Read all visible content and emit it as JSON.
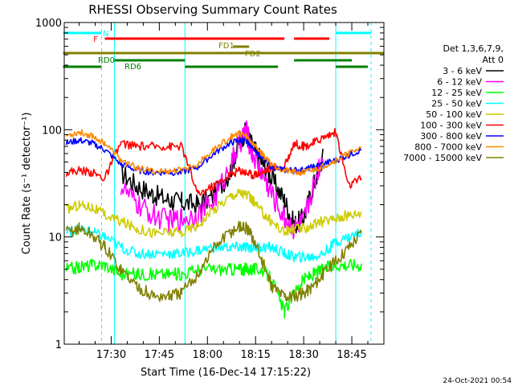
{
  "chart_data": {
    "type": "line",
    "title": "RHESSI Observing Summary Count Rates",
    "xlabel": "Start Time (16-Dec-14 17:15:22)",
    "ylabel": "Count Rate (s⁻¹ detector⁻¹)",
    "yscale": "log",
    "ylim": [
      1,
      1000
    ],
    "xlim": [
      "17:15:22",
      "18:55:00"
    ],
    "x_ticks": [
      "17:30",
      "17:45",
      "18:00",
      "18:15",
      "18:30",
      "18:45"
    ],
    "y_ticks": [
      "1",
      "10",
      "100",
      "1000"
    ],
    "legend_position": "right",
    "legend_header": [
      "Det 1,3,6,7,9,",
      "Att 0"
    ],
    "footer_date": "24-Oct-2021 00:54",
    "flags": [
      {
        "label": "N",
        "color": "#00ffff",
        "segments": [
          [
            "17:15",
            "17:27"
          ],
          [
            "18:40",
            "18:51"
          ]
        ]
      },
      {
        "label": "F",
        "color": "#ff0000",
        "segments": [
          [
            "17:28",
            "18:24"
          ],
          [
            "18:27",
            "18:38"
          ]
        ]
      },
      {
        "label": "FD1",
        "color": "#808000",
        "segments": [
          [
            "18:08",
            "18:13"
          ]
        ]
      },
      {
        "label": "FD2",
        "color": "#808000",
        "segments": [
          [
            "17:15",
            "18:55"
          ]
        ]
      },
      {
        "label": "RD0",
        "color": "#008000",
        "segments": [
          [
            "17:31",
            "17:53"
          ],
          [
            "18:27",
            "18:45"
          ]
        ]
      },
      {
        "label": "RD6",
        "color": "#008000",
        "segments": [
          [
            "17:15",
            "17:27"
          ],
          [
            "17:53",
            "18:22"
          ],
          [
            "18:40",
            "18:50"
          ]
        ]
      }
    ],
    "vlines": [
      {
        "time": "17:27",
        "style": "dashed"
      },
      {
        "time": "17:31",
        "style": "solid"
      },
      {
        "time": "17:53",
        "style": "solid"
      },
      {
        "time": "18:40",
        "style": "solid"
      },
      {
        "time": "18:51",
        "style": "dashed"
      }
    ],
    "series": [
      {
        "name": "3 - 6 keV",
        "color": "#000000",
        "x": [
          "17:16",
          "17:20",
          "17:24",
          "17:28",
          "17:33",
          "17:38",
          "17:43",
          "17:48",
          "17:52",
          "17:57",
          "18:02",
          "18:07",
          "18:10",
          "18:12",
          "18:14",
          "18:17",
          "18:20",
          "18:24",
          "18:27",
          "18:30",
          "18:33",
          "18:36",
          "18:40",
          "18:44",
          "18:48"
        ],
        "y": [
          null,
          null,
          null,
          null,
          40,
          30,
          25,
          22,
          21,
          20,
          24,
          40,
          80,
          95,
          70,
          50,
          35,
          22,
          13,
          15,
          30,
          55,
          null,
          null,
          null
        ]
      },
      {
        "name": "6 - 12 keV",
        "color": "#ff00ff",
        "x": [
          "17:16",
          "17:20",
          "17:24",
          "17:28",
          "17:33",
          "17:38",
          "17:43",
          "17:48",
          "17:52",
          "17:57",
          "18:02",
          "18:07",
          "18:10",
          "18:12",
          "18:14",
          "18:17",
          "18:20",
          "18:24",
          "18:27",
          "18:30",
          "18:33",
          "18:36",
          "18:40",
          "18:44",
          "18:48"
        ],
        "y": [
          null,
          null,
          null,
          null,
          30,
          20,
          16,
          14,
          15,
          16,
          22,
          45,
          75,
          100,
          60,
          40,
          25,
          15,
          12,
          14,
          30,
          60,
          null,
          null,
          null
        ]
      },
      {
        "name": "12 - 25 keV",
        "color": "#00ff00",
        "x": [
          "17:16",
          "17:20",
          "17:24",
          "17:28",
          "17:33",
          "17:38",
          "17:43",
          "17:48",
          "17:52",
          "17:57",
          "18:02",
          "18:07",
          "18:10",
          "18:12",
          "18:14",
          "18:17",
          "18:20",
          "18:24",
          "18:27",
          "18:30",
          "18:33",
          "18:36",
          "18:40",
          "18:44",
          "18:48"
        ],
        "y": [
          5,
          5.2,
          5.5,
          5.5,
          4.5,
          4.5,
          4.5,
          4.5,
          4.5,
          5,
          5,
          5,
          5,
          5,
          5,
          5,
          4,
          2,
          3,
          4,
          4.5,
          5,
          5.5,
          5.5,
          5.5
        ]
      },
      {
        "name": "25 - 50 keV",
        "color": "#00ffff",
        "x": [
          "17:16",
          "17:20",
          "17:24",
          "17:28",
          "17:33",
          "17:38",
          "17:43",
          "17:48",
          "17:52",
          "17:57",
          "18:02",
          "18:07",
          "18:10",
          "18:12",
          "18:14",
          "18:17",
          "18:20",
          "18:24",
          "18:27",
          "18:30",
          "18:33",
          "18:36",
          "18:40",
          "18:44",
          "18:48"
        ],
        "y": [
          11,
          12,
          11,
          10,
          8,
          7,
          7,
          7,
          7,
          7.5,
          8,
          8,
          8,
          8,
          8,
          8,
          8,
          7,
          6.5,
          6.5,
          6.5,
          7,
          9,
          10,
          11
        ]
      },
      {
        "name": "50 - 100 keV",
        "color": "#cccc00",
        "x": [
          "17:16",
          "17:20",
          "17:24",
          "17:28",
          "17:33",
          "17:38",
          "17:43",
          "17:48",
          "17:52",
          "17:57",
          "18:02",
          "18:07",
          "18:10",
          "18:12",
          "18:14",
          "18:17",
          "18:20",
          "18:24",
          "18:27",
          "18:30",
          "18:33",
          "18:36",
          "18:40",
          "18:44",
          "18:48"
        ],
        "y": [
          18,
          20,
          19,
          16,
          14,
          12,
          11,
          11,
          11,
          13,
          18,
          24,
          26,
          25,
          22,
          17,
          14,
          11,
          12,
          12,
          13,
          14,
          15,
          16,
          17
        ]
      },
      {
        "name": "100 - 300 keV",
        "color": "#ff0000",
        "x": [
          "17:16",
          "17:20",
          "17:24",
          "17:28",
          "17:33",
          "17:38",
          "17:43",
          "17:48",
          "17:52",
          "17:57",
          "18:02",
          "18:07",
          "18:10",
          "18:12",
          "18:14",
          "18:17",
          "18:20",
          "18:24",
          "18:27",
          "18:30",
          "18:33",
          "18:36",
          "18:40",
          "18:44",
          "18:48"
        ],
        "y": [
          40,
          42,
          40,
          35,
          75,
          70,
          70,
          70,
          70,
          25,
          30,
          38,
          42,
          40,
          38,
          40,
          45,
          45,
          75,
          70,
          75,
          85,
          95,
          30,
          35
        ]
      },
      {
        "name": "300 - 800 keV",
        "color": "#0000ff",
        "x": [
          "17:16",
          "17:20",
          "17:24",
          "17:28",
          "17:33",
          "17:38",
          "17:43",
          "17:48",
          "17:52",
          "17:57",
          "18:02",
          "18:07",
          "18:10",
          "18:12",
          "18:14",
          "18:17",
          "18:20",
          "18:24",
          "18:27",
          "18:30",
          "18:33",
          "18:36",
          "18:40",
          "18:44",
          "18:48"
        ],
        "y": [
          75,
          80,
          75,
          65,
          48,
          42,
          40,
          40,
          40,
          45,
          60,
          75,
          80,
          78,
          70,
          55,
          45,
          42,
          42,
          42,
          45,
          48,
          52,
          58,
          65
        ]
      },
      {
        "name": "800 - 7000 keV",
        "color": "#ff8800",
        "x": [
          "17:16",
          "17:20",
          "17:24",
          "17:28",
          "17:33",
          "17:38",
          "17:43",
          "17:48",
          "17:52",
          "17:57",
          "18:02",
          "18:07",
          "18:10",
          "18:12",
          "18:14",
          "18:17",
          "18:20",
          "18:24",
          "18:27",
          "18:30",
          "18:33",
          "18:36",
          "18:40",
          "18:44",
          "18:48"
        ],
        "y": [
          88,
          95,
          88,
          75,
          52,
          44,
          41,
          41,
          42,
          48,
          65,
          85,
          92,
          88,
          75,
          60,
          48,
          42,
          40,
          40,
          42,
          46,
          52,
          60,
          68
        ]
      },
      {
        "name": "7000 - 15000 keV",
        "color": "#808000",
        "x": [
          "17:16",
          "17:20",
          "17:24",
          "17:28",
          "17:33",
          "17:38",
          "17:43",
          "17:48",
          "17:52",
          "17:57",
          "18:02",
          "18:07",
          "18:10",
          "18:12",
          "18:14",
          "18:17",
          "18:20",
          "18:24",
          "18:27",
          "18:30",
          "18:33",
          "18:36",
          "18:40",
          "18:44",
          "18:48"
        ],
        "y": [
          11,
          12,
          10.5,
          8,
          5,
          3.5,
          2.8,
          2.8,
          3,
          4.5,
          8,
          11,
          12.5,
          12,
          10,
          6,
          3.5,
          2.8,
          2.8,
          3,
          3.5,
          4.5,
          6,
          8,
          11
        ]
      }
    ]
  }
}
